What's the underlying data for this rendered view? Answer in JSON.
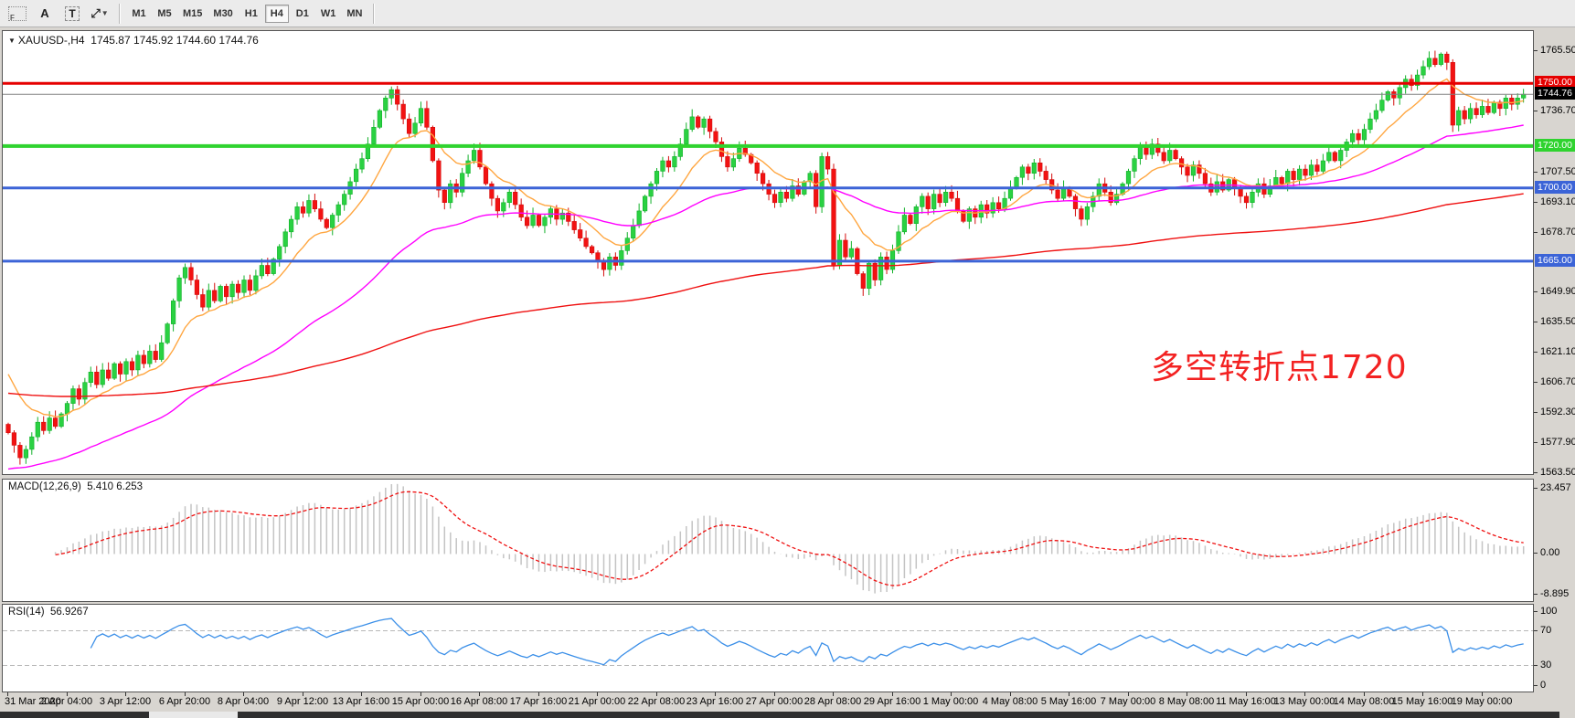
{
  "toolbar": {
    "tools": [
      {
        "id": "indicator-grid",
        "glyph": "F"
      },
      {
        "id": "cursor-tool",
        "glyph": "A"
      },
      {
        "id": "text-tool",
        "glyph": "T"
      },
      {
        "id": "arrows-tool",
        "glyph": "⤢"
      }
    ],
    "timeframes": [
      "M1",
      "M5",
      "M15",
      "M30",
      "H1",
      "H4",
      "D1",
      "W1",
      "MN"
    ],
    "active_timeframe": "H4"
  },
  "chart": {
    "symbol": "XAUUSD-,H4",
    "ohlc": "1745.87 1745.92 1744.60 1744.76",
    "annotation": {
      "text": "多空转折点1720",
      "color": "#f32222"
    },
    "price_ticks": [
      1765.5,
      1736.7,
      1707.5,
      1693.1,
      1678.7,
      1649.9,
      1635.5,
      1621.1,
      1606.7,
      1592.3,
      1577.9,
      1563.5
    ],
    "badges": [
      {
        "text": "1750.00",
        "price": 1750.0,
        "bg": "#e60000"
      },
      {
        "text": "1744.76",
        "price": 1744.76,
        "bg": "#000000"
      },
      {
        "text": "1720.00",
        "price": 1720.0,
        "bg": "#2fd32f"
      },
      {
        "text": "1700.00",
        "price": 1700.0,
        "bg": "#3c64d7"
      },
      {
        "text": "1665.00",
        "price": 1665.0,
        "bg": "#3c64d7"
      }
    ],
    "hlines": [
      {
        "price": 1750.0,
        "color": "#e60000",
        "width": 3
      },
      {
        "price": 1744.76,
        "color": "#808080",
        "width": 1
      },
      {
        "price": 1720.0,
        "color": "#2fd32f",
        "width": 4
      },
      {
        "price": 1700.0,
        "color": "#3c64d7",
        "width": 3
      },
      {
        "price": 1665.0,
        "color": "#3c64d7",
        "width": 3
      }
    ]
  },
  "chart_data": {
    "type": "candlestick",
    "symbol": "XAUUSD",
    "timeframe": "H4",
    "price_range": {
      "min": 1563.2,
      "max": 1775.0
    },
    "closes": [
      1583,
      1577,
      1571,
      1575,
      1581,
      1588,
      1584,
      1590,
      1586,
      1592,
      1597,
      1604,
      1599,
      1607,
      1612,
      1606,
      1613,
      1609,
      1616,
      1611,
      1617,
      1613,
      1620,
      1616,
      1622,
      1618,
      1626,
      1635,
      1646,
      1657,
      1662,
      1656,
      1649,
      1643,
      1651,
      1646,
      1653,
      1648,
      1654,
      1650,
      1656,
      1651,
      1658,
      1663,
      1659,
      1666,
      1672,
      1679,
      1685,
      1691,
      1688,
      1694,
      1690,
      1685,
      1681,
      1687,
      1692,
      1697,
      1703,
      1709,
      1714,
      1721,
      1729,
      1737,
      1743,
      1747,
      1740,
      1733,
      1726,
      1731,
      1738,
      1729,
      1713,
      1699,
      1693,
      1702,
      1698,
      1707,
      1713,
      1718,
      1710,
      1702,
      1695,
      1689,
      1693,
      1698,
      1692,
      1686,
      1682,
      1687,
      1682,
      1686,
      1690,
      1685,
      1688,
      1684,
      1680,
      1676,
      1672,
      1669,
      1665,
      1661,
      1667,
      1663,
      1670,
      1676,
      1682,
      1689,
      1696,
      1702,
      1708,
      1713,
      1710,
      1715,
      1721,
      1728,
      1734,
      1729,
      1733,
      1727,
      1722,
      1715,
      1710,
      1714,
      1719,
      1716,
      1712,
      1707,
      1702,
      1697,
      1693,
      1698,
      1695,
      1701,
      1697,
      1703,
      1707,
      1691,
      1715,
      1709,
      1663,
      1675,
      1667,
      1671,
      1659,
      1652,
      1664,
      1656,
      1667,
      1661,
      1670,
      1679,
      1687,
      1683,
      1691,
      1696,
      1690,
      1697,
      1693,
      1698,
      1695,
      1689,
      1684,
      1690,
      1686,
      1692,
      1688,
      1693,
      1690,
      1695,
      1700,
      1705,
      1710,
      1707,
      1712,
      1708,
      1704,
      1699,
      1695,
      1700,
      1696,
      1690,
      1685,
      1691,
      1696,
      1702,
      1698,
      1693,
      1697,
      1702,
      1708,
      1714,
      1720,
      1716,
      1721,
      1717,
      1713,
      1718,
      1714,
      1710,
      1706,
      1711,
      1707,
      1702,
      1698,
      1703,
      1699,
      1704,
      1700,
      1696,
      1693,
      1698,
      1702,
      1697,
      1701,
      1705,
      1702,
      1708,
      1704,
      1709,
      1706,
      1711,
      1708,
      1713,
      1717,
      1713,
      1718,
      1722,
      1726,
      1723,
      1728,
      1733,
      1737,
      1742,
      1746,
      1743,
      1748,
      1752,
      1749,
      1754,
      1758,
      1762,
      1759,
      1764,
      1760,
      1730,
      1737,
      1733,
      1738,
      1735,
      1739,
      1736,
      1741,
      1738,
      1743,
      1740,
      1743,
      1744.8
    ],
    "candle_colors": {
      "up_fill": "#2ad142",
      "up_stroke": "#12b12a",
      "down_fill": "#f21212",
      "down_stroke": "#d40d0d"
    },
    "moving_averages": [
      {
        "name": "fast-ma",
        "period": 12,
        "seed": 1616,
        "color": "#ffa640"
      },
      {
        "name": "mid-ma",
        "period": 55,
        "seed": 1565,
        "color": "#ff00ff"
      },
      {
        "name": "slow-ma",
        "period": 220,
        "seed": 1602,
        "color": "#ef1010"
      }
    ],
    "time_labels": [
      "31 Mar 2020",
      "2 Apr 04:00",
      "3 Apr 12:00",
      "6 Apr 20:00",
      "8 Apr 04:00",
      "9 Apr 12:00",
      "13 Apr 16:00",
      "15 Apr 00:00",
      "16 Apr 08:00",
      "17 Apr 16:00",
      "21 Apr 00:00",
      "22 Apr 08:00",
      "23 Apr 16:00",
      "27 Apr 00:00",
      "28 Apr 08:00",
      "29 Apr 16:00",
      "1 May 00:00",
      "4 May 08:00",
      "5 May 16:00",
      "7 May 00:00",
      "8 May 08:00",
      "11 May 16:00",
      "13 May 00:00",
      "14 May 08:00",
      "15 May 16:00",
      "19 May 00:00"
    ],
    "bars_per_label": 10,
    "indicators": {
      "macd": {
        "label": "MACD(12,26,9)",
        "values": "5.410 6.253",
        "fast": 12,
        "slow": 26,
        "signal": 9,
        "axis_labels": [
          "23.457",
          "0.00",
          "-8.895"
        ],
        "histogram_color": "#c4c4c4",
        "signal_color": "#ef1010"
      },
      "rsi": {
        "label": "RSI(14)",
        "value": "56.9267",
        "period": 14,
        "levels": [
          70,
          30
        ],
        "axis_labels": [
          "100",
          "70",
          "30",
          "0"
        ],
        "line_color": "#3b8fe8",
        "level_color": "#b8b8b8"
      }
    }
  }
}
